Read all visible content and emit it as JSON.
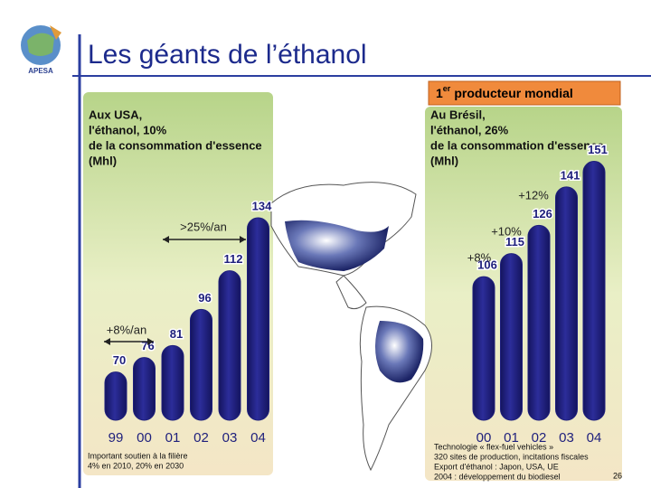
{
  "slide": {
    "title": "Les géants de l’éthanol",
    "logo": "APESA",
    "badge": {
      "number": "1",
      "suffix": "er",
      "text": "producteur mondial"
    },
    "page_number": "26"
  },
  "chart_data": [
    {
      "type": "bar",
      "title_lines": [
        "Aux USA,",
        "l'éthanol, 10%",
        "de la consommation d'essence",
        "(Mhl)"
      ],
      "categories": [
        "99",
        "00",
        "01",
        "02",
        "03",
        "04"
      ],
      "values": [
        70,
        76,
        81,
        96,
        112,
        134
      ],
      "ylim": [
        50,
        140
      ],
      "color": "#1e1f7c",
      "annotations": [
        ">25%/an",
        "+8%/an"
      ],
      "notes": [
        "Important soutien à la filière",
        "4% en 2010, 20% en 2030"
      ]
    },
    {
      "type": "bar",
      "title_lines": [
        "Au Brésil,",
        "l'éthanol, 26%",
        "de la consommation d'essence",
        "(Mhl)"
      ],
      "categories": [
        "00",
        "01",
        "02",
        "03",
        "04"
      ],
      "values": [
        106,
        115,
        126,
        141,
        151
      ],
      "ylim": [
        50,
        160
      ],
      "color": "#1e1f7c",
      "annotations": [
        "+12%",
        "+10%",
        "+8%"
      ],
      "notes": [
        "Technologie « flex-fuel vehicles »",
        "320 sites de production, incitations fiscales",
        "Export d'éthanol : Japon, USA, UE",
        "2004 : développement du biodiesel"
      ]
    }
  ]
}
